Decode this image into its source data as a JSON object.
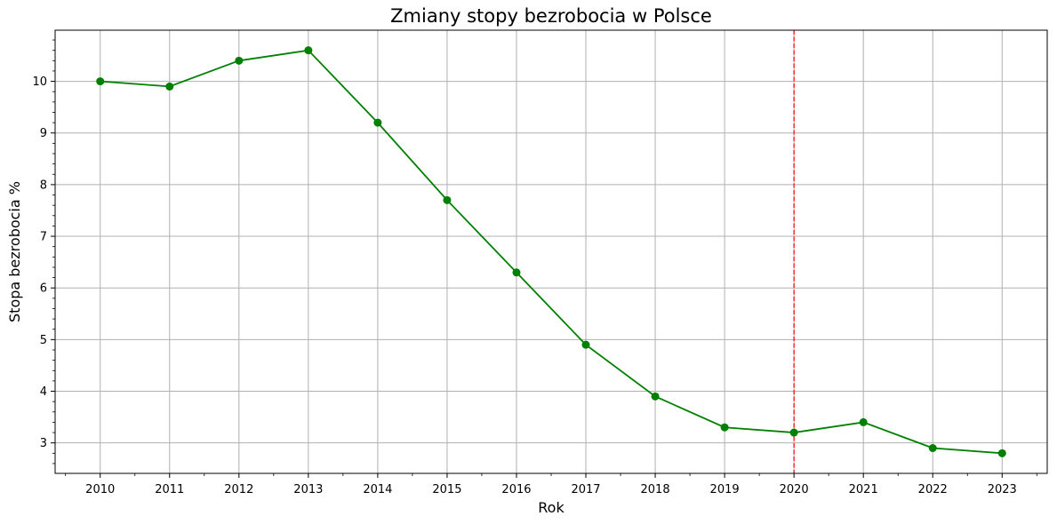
{
  "chart_data": {
    "type": "line",
    "title": "Zmiany stopy bezrobocia w Polsce",
    "xlabel": "Rok",
    "ylabel": "Stopa bezrobocia %",
    "x": [
      2010,
      2011,
      2012,
      2013,
      2014,
      2015,
      2016,
      2017,
      2018,
      2019,
      2020,
      2021,
      2022,
      2023
    ],
    "x_tick_labels": [
      "2010",
      "2011",
      "2012",
      "2013",
      "2014",
      "2015",
      "2016",
      "2017",
      "2018",
      "2019",
      "2020",
      "2021",
      "2022",
      "2023"
    ],
    "series": [
      {
        "values": [
          10.0,
          9.9,
          10.4,
          10.6,
          9.2,
          7.7,
          6.3,
          4.9,
          3.9,
          3.3,
          3.2,
          3.4,
          2.9,
          2.8
        ],
        "color": "#008000",
        "marker": "circle"
      }
    ],
    "y_ticks": [
      3,
      4,
      5,
      6,
      7,
      8,
      9,
      10
    ],
    "y_tick_labels": [
      "3",
      "4",
      "5",
      "6",
      "7",
      "8",
      "9",
      "10"
    ],
    "xlim": [
      2009.35,
      2023.65
    ],
    "ylim": [
      2.41,
      10.99
    ],
    "minor_ticks": true,
    "grid": true,
    "grid_color": "#b0b0b0",
    "annotations": [
      {
        "type": "vline",
        "x": 2020,
        "color": "#ff0000",
        "style": "dashed"
      }
    ]
  }
}
